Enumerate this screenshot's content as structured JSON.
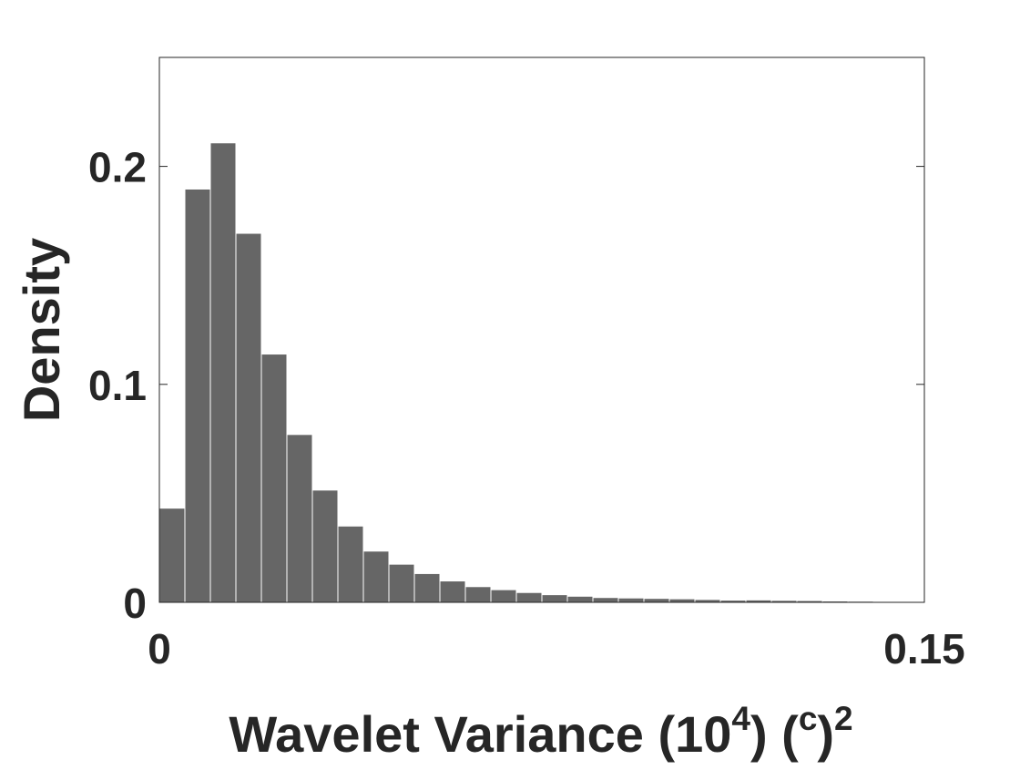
{
  "chart_data": {
    "type": "bar",
    "xlabel": "Wavelet Variance (10",
    "xlabel_exp": "4",
    "xlabel_mid": ") (",
    "xlabel_sup": "c",
    "xlabel_end": ")",
    "xlabel_exp2": "2",
    "ylabel": "Density",
    "xlim": [
      0,
      0.15
    ],
    "ylim": [
      0,
      0.25
    ],
    "x_ticks": [
      0,
      0.15
    ],
    "x_tick_labels": [
      "0",
      "0.15"
    ],
    "y_ticks": [
      0,
      0.1,
      0.2
    ],
    "y_tick_labels": [
      "0",
      "0.1",
      "0.2"
    ],
    "bin_width": 0.005,
    "bin_starts": [
      0,
      0.005,
      0.01,
      0.015,
      0.02,
      0.025,
      0.03,
      0.035,
      0.04,
      0.045,
      0.05,
      0.055,
      0.06,
      0.065,
      0.07,
      0.075,
      0.08,
      0.085,
      0.09,
      0.095,
      0.1,
      0.105,
      0.11,
      0.115,
      0.12,
      0.125,
      0.13,
      0.135,
      0.14,
      0.145
    ],
    "values": [
      0.0432,
      0.1896,
      0.2108,
      0.1693,
      0.1139,
      0.077,
      0.0515,
      0.035,
      0.0235,
      0.0175,
      0.0132,
      0.0098,
      0.0072,
      0.0058,
      0.0045,
      0.0035,
      0.0028,
      0.0022,
      0.002,
      0.0018,
      0.0016,
      0.0013,
      0.001,
      0.0011,
      0.0009,
      0.0008,
      0.0006,
      0.0005,
      0.0004,
      0.0004
    ],
    "bar_color": "#666666",
    "grid": false,
    "legend": "none"
  }
}
